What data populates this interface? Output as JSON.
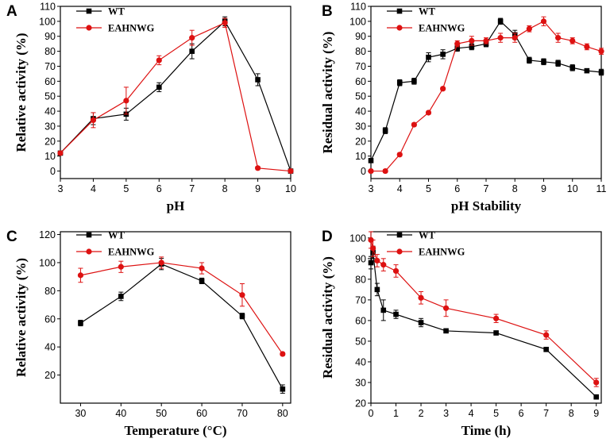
{
  "chart_data": [
    {
      "panel": "A",
      "type": "line",
      "xlabel": "pH",
      "ylabel": "Relative activity (%)",
      "xlim": [
        3,
        10
      ],
      "ylim": [
        -5,
        110
      ],
      "xticks": [
        3,
        4,
        5,
        6,
        7,
        8,
        9,
        10
      ],
      "yticks": [
        0,
        10,
        20,
        30,
        40,
        50,
        60,
        70,
        80,
        90,
        100,
        110
      ],
      "legend_position": "top-left",
      "series": [
        {
          "name": "WT",
          "color": "#000000",
          "marker": "square",
          "x": [
            3,
            4,
            5,
            6,
            7,
            8,
            9,
            10
          ],
          "y": [
            12,
            35,
            38,
            56,
            80,
            100,
            61,
            0
          ],
          "err": [
            1,
            4,
            4,
            3,
            5,
            3,
            4,
            1
          ]
        },
        {
          "name": "EAHNWG",
          "color": "#dd1111",
          "marker": "circle",
          "x": [
            3,
            4,
            5,
            6,
            7,
            8,
            9,
            10
          ],
          "y": [
            12,
            34,
            47,
            74,
            89,
            99,
            2,
            0
          ],
          "err": [
            1,
            5,
            9,
            3,
            5,
            3,
            1,
            1
          ]
        }
      ]
    },
    {
      "panel": "B",
      "type": "line",
      "xlabel": "pH Stability",
      "ylabel": "Residual activity (%)",
      "xlim": [
        3,
        11
      ],
      "ylim": [
        -5,
        110
      ],
      "xticks": [
        3,
        4,
        5,
        6,
        7,
        8,
        9,
        10,
        11
      ],
      "yticks": [
        0,
        10,
        20,
        30,
        40,
        50,
        60,
        70,
        80,
        90,
        100,
        110
      ],
      "legend_position": "top-left",
      "series": [
        {
          "name": "WT",
          "color": "#000000",
          "marker": "square",
          "x": [
            3,
            3.5,
            4,
            4.5,
            5,
            5.5,
            6,
            6.5,
            7,
            7.5,
            8,
            8.5,
            9,
            9.5,
            10,
            10.5,
            11
          ],
          "y": [
            7,
            27,
            59,
            60,
            76,
            78,
            82,
            83,
            85,
            100,
            91,
            74,
            73,
            72,
            69,
            67,
            66
          ],
          "err": [
            1,
            2,
            2,
            2,
            3,
            3,
            2,
            2,
            2,
            2,
            3,
            2,
            2,
            2,
            2,
            1,
            2
          ]
        },
        {
          "name": "EAHNWG",
          "color": "#dd1111",
          "marker": "circle",
          "x": [
            3,
            3.5,
            4,
            4.5,
            5,
            5.5,
            6,
            6.5,
            7,
            7.5,
            8,
            8.5,
            9,
            9.5,
            10,
            10.5,
            11
          ],
          "y": [
            0,
            0,
            11,
            31,
            39,
            55,
            85,
            87,
            87,
            89,
            89,
            95,
            100,
            89,
            87,
            83,
            80
          ],
          "err": [
            1,
            1,
            1,
            1,
            1,
            1,
            2,
            3,
            2,
            3,
            3,
            2,
            3,
            3,
            2,
            2,
            2
          ]
        }
      ]
    },
    {
      "panel": "C",
      "type": "line",
      "xlabel": "Temperature (°C)",
      "ylabel": "Relative activity (%)",
      "xlim": [
        25,
        82
      ],
      "ylim": [
        0,
        122
      ],
      "xticks": [
        30,
        40,
        50,
        60,
        70,
        80
      ],
      "yticks": [
        20,
        40,
        60,
        80,
        100,
        120
      ],
      "legend_position": "top-left",
      "series": [
        {
          "name": "WT",
          "color": "#000000",
          "marker": "square",
          "x": [
            30,
            40,
            50,
            60,
            70,
            80
          ],
          "y": [
            57,
            76,
            99,
            87,
            62,
            10
          ],
          "err": [
            2,
            3,
            4,
            2,
            2,
            3
          ]
        },
        {
          "name": "EAHNWG",
          "color": "#dd1111",
          "marker": "circle",
          "x": [
            30,
            40,
            50,
            60,
            70,
            80
          ],
          "y": [
            91,
            97,
            100,
            96,
            77,
            35
          ],
          "err": [
            5,
            4,
            4,
            4,
            8,
            1
          ]
        }
      ]
    },
    {
      "panel": "D",
      "type": "line",
      "xlabel": "Time (h)",
      "ylabel": "Residual activity (%)",
      "xlim": [
        0,
        9.2
      ],
      "ylim": [
        20,
        103
      ],
      "xticks": [
        0,
        1,
        2,
        3,
        4,
        5,
        6,
        7,
        8,
        9
      ],
      "yticks": [
        20,
        30,
        40,
        50,
        60,
        70,
        80,
        90,
        100
      ],
      "legend_position": "top-left",
      "series": [
        {
          "name": "WT",
          "color": "#000000",
          "marker": "square",
          "x": [
            0,
            0.083,
            0.25,
            0.5,
            1,
            2,
            3,
            5,
            7,
            9
          ],
          "y": [
            88,
            93,
            75,
            65,
            63,
            59,
            55,
            54,
            46,
            23
          ],
          "err": [
            3,
            3,
            3,
            5,
            2,
            2,
            1,
            1,
            1,
            1
          ]
        },
        {
          "name": "EAHNWG",
          "color": "#dd1111",
          "marker": "circle",
          "x": [
            0,
            0.083,
            0.25,
            0.5,
            1,
            2,
            3,
            5,
            7,
            9
          ],
          "y": [
            99,
            95,
            89,
            87,
            84,
            71,
            66,
            61,
            53,
            30
          ],
          "err": [
            4,
            4,
            3,
            3,
            3,
            3,
            4,
            2,
            2,
            2
          ]
        }
      ]
    }
  ]
}
